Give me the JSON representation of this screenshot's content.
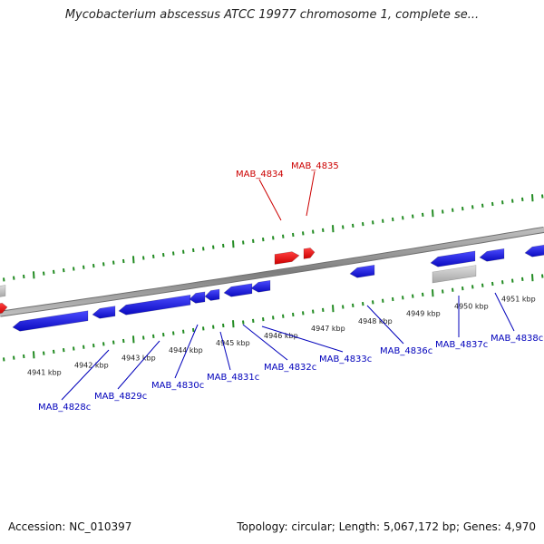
{
  "title": "Mycobacterium abscessus ATCC 19977 chromosome 1, complete se...",
  "accession": "Accession: NC_010397",
  "stats": "Topology: circular; Length: 5,067,172 bp; Genes: 4,970",
  "colors": {
    "forward_gene": "#ee0000",
    "reverse_gene": "#1010dd",
    "other_feature": "#b8b8b8",
    "tick": "#228b22",
    "backbone": "#888888",
    "forward_label": "#cc0000",
    "reverse_label": "#0000bb"
  },
  "kbp_labels": [
    "4941 kbp",
    "4942 kbp",
    "4943 kbp",
    "4944 kbp",
    "4945 kbp",
    "4946 kbp",
    "4947 kbp",
    "4948 kbp",
    "4949 kbp",
    "4950 kbp",
    "4951 kbp"
  ],
  "forward_gene_labels": [
    "MAB_4834",
    "MAB_4835"
  ],
  "reverse_gene_labels": [
    "MAB_4828c",
    "MAB_4829c",
    "MAB_4830c",
    "MAB_4831c",
    "MAB_4832c",
    "MAB_4833c",
    "MAB_4836c",
    "MAB_4837c",
    "MAB_4838c"
  ]
}
